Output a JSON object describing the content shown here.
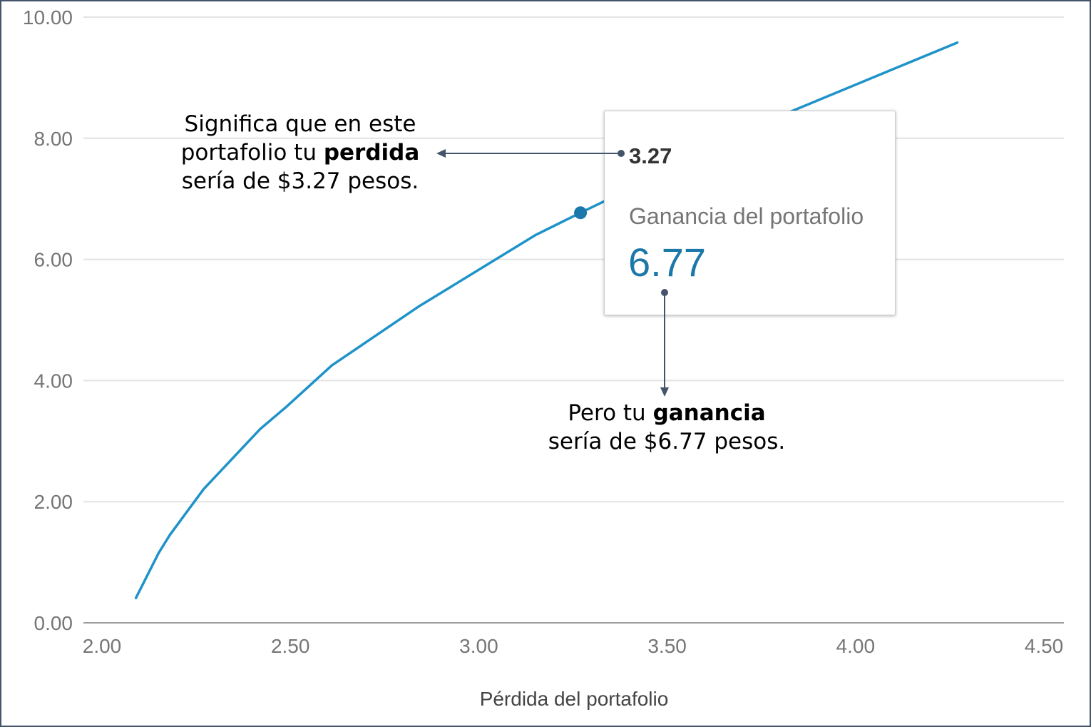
{
  "chart_data": {
    "type": "line",
    "title": "",
    "xlabel": "Pérdida del portafolio",
    "ylabel": "",
    "xlim": [
      2.0,
      4.5
    ],
    "ylim": [
      0,
      10
    ],
    "x_tick_labels": [
      "2.00",
      "2.50",
      "3.00",
      "3.50",
      "4.00",
      "4.50"
    ],
    "y_tick_labels": [
      "0.00",
      "2.00",
      "4.00",
      "6.00",
      "8.00",
      "10.00"
    ],
    "grid": true,
    "series": [
      {
        "name": "Ganancia del portafolio",
        "x": [
          2.09,
          2.15,
          2.18,
          2.27,
          2.42,
          2.49,
          2.61,
          2.84,
          3.15,
          3.27,
          3.82,
          4.27
        ],
        "y": [
          0.41,
          1.15,
          1.45,
          2.21,
          3.2,
          3.57,
          4.25,
          5.22,
          6.4,
          6.77,
          8.42,
          9.58
        ]
      }
    ],
    "highlight": {
      "x": 3.27,
      "y": 6.77
    }
  },
  "tooltip": {
    "x_value": "3.27",
    "y_value": "6.77"
  },
  "annotations": {
    "loss": {
      "line1": "Significa que en este",
      "line2_prefix": "portafolio tu",
      "line2_bold": "perdida",
      "line3": "sería de $3.27 pesos."
    },
    "gain": {
      "line1_prefix": "Pero tu",
      "line1_bold": "ganancia",
      "line2": "sería de $6.77 pesos."
    }
  },
  "colors": {
    "series_line": "#1f93c9",
    "highlight_point": "#1b78ab",
    "tooltip_value": "#1c78a8",
    "annotation_arrow": "#44546a",
    "grid": "#e3e3e3",
    "axis": "#9e9e9e",
    "tick_label": "#757575",
    "axis_title": "#444444",
    "frame_border": "#44546a"
  }
}
